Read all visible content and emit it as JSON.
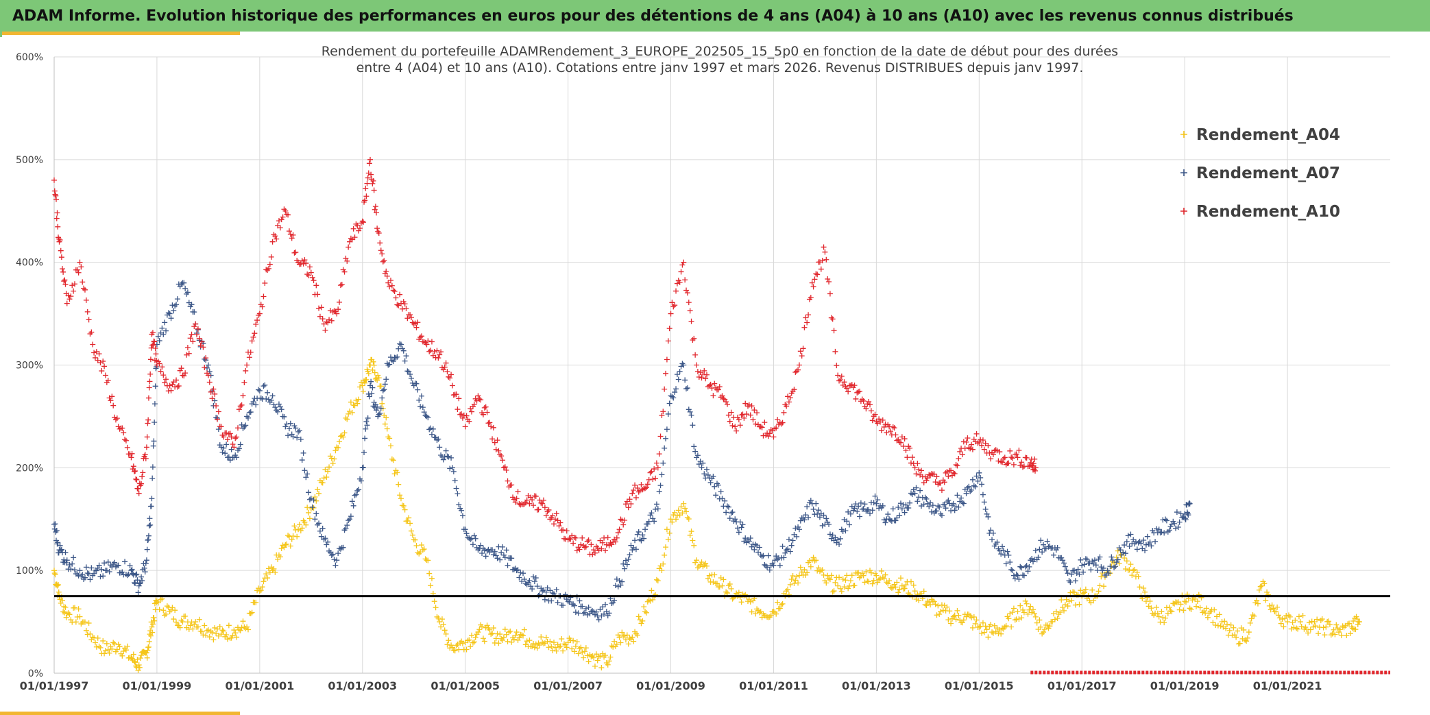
{
  "banner": {
    "title": "ADAM Informe. Evolution historique des performances en euros pour des détentions de 4 ans (A04) à 10 ans (A10) avec les revenus connus distribués"
  },
  "colors": {
    "banner": "#7dc777",
    "accent": "#f2b632",
    "a04": "#f5c518",
    "a07": "#3b5687",
    "a10": "#e1262c",
    "reference": "#000000",
    "grid": "#d9d9d9"
  },
  "chart_data": {
    "type": "scatter",
    "title_lines": [
      "Rendement du portefeuille ADAMRendement_3_EUROPE_202505_15_5p0  en fonction de la date de début pour des durées",
      "entre 4 (A04) et 10 ans (A10). Cotations entre janv 1997 et mars 2026. Revenus DISTRIBUES depuis janv 1997."
    ],
    "xlabel": "",
    "ylabel": "",
    "xlim": [
      1997.0,
      2023.0
    ],
    "ylim": [
      0,
      600
    ],
    "y_ticks": [
      0,
      100,
      200,
      300,
      400,
      500,
      600
    ],
    "y_tick_labels": [
      "0%",
      "100%",
      "200%",
      "300%",
      "400%",
      "500%",
      "600%"
    ],
    "x_ticks": [
      1997,
      1999,
      2001,
      2003,
      2005,
      2007,
      2009,
      2011,
      2013,
      2015,
      2017,
      2019,
      2021
    ],
    "x_tick_labels": [
      "01/01/1997",
      "01/01/1999",
      "01/01/2001",
      "01/01/2003",
      "01/01/2005",
      "01/01/2007",
      "01/01/2009",
      "01/01/2011",
      "01/01/2013",
      "01/01/2015",
      "01/01/2017",
      "01/01/2019",
      "01/01/2021"
    ],
    "grid": true,
    "legend_position": "top-right",
    "reference_line": {
      "y": 75
    },
    "series": [
      {
        "name": "Rendement_A04",
        "color": "#f5c518",
        "x": [
          1997.0,
          1997.1,
          1997.25,
          1997.5,
          1997.75,
          1998.0,
          1998.25,
          1998.5,
          1998.65,
          1998.8,
          1998.9,
          1999.0,
          1999.25,
          1999.5,
          1999.75,
          2000.0,
          2000.25,
          2000.5,
          2000.75,
          2001.0,
          2001.25,
          2001.5,
          2001.75,
          2002.0,
          2002.25,
          2002.5,
          2002.75,
          2003.0,
          2003.15,
          2003.3,
          2003.5,
          2003.75,
          2004.0,
          2004.25,
          2004.5,
          2004.75,
          2005.0,
          2005.25,
          2005.5,
          2005.75,
          2006.0,
          2006.25,
          2006.5,
          2006.75,
          2007.0,
          2007.25,
          2007.5,
          2007.75,
          2008.0,
          2008.25,
          2008.5,
          2008.75,
          2009.0,
          2009.25,
          2009.5,
          2009.75,
          2010.0,
          2010.25,
          2010.5,
          2010.75,
          2011.0,
          2011.25,
          2011.5,
          2011.75,
          2012.0,
          2012.25,
          2012.5,
          2012.75,
          2013.0,
          2013.25,
          2013.5,
          2013.75,
          2014.0,
          2014.25,
          2014.5,
          2014.75,
          2015.0,
          2015.25,
          2015.5,
          2015.75,
          2016.0,
          2016.25,
          2016.5,
          2016.75,
          2017.0,
          2017.25,
          2017.5,
          2017.75,
          2018.0,
          2018.25,
          2018.5,
          2018.75,
          2019.0,
          2019.25,
          2019.5,
          2019.75,
          2020.0,
          2020.25,
          2020.5,
          2020.75,
          2021.0,
          2021.25,
          2021.5,
          2021.75,
          2022.0,
          2022.25,
          2022.4
        ],
        "y": [
          100,
          75,
          58,
          55,
          35,
          22,
          28,
          15,
          8,
          20,
          45,
          70,
          60,
          50,
          50,
          42,
          38,
          42,
          45,
          80,
          100,
          125,
          140,
          160,
          190,
          220,
          255,
          280,
          300,
          290,
          230,
          170,
          130,
          110,
          50,
          25,
          30,
          40,
          38,
          35,
          40,
          32,
          30,
          25,
          30,
          25,
          15,
          10,
          35,
          35,
          60,
          90,
          150,
          165,
          110,
          95,
          85,
          75,
          70,
          60,
          60,
          80,
          95,
          110,
          90,
          85,
          90,
          95,
          95,
          90,
          85,
          80,
          70,
          60,
          55,
          55,
          45,
          40,
          45,
          60,
          65,
          40,
          60,
          70,
          75,
          75,
          100,
          115,
          100,
          70,
          55,
          60,
          70,
          70,
          60,
          45,
          35,
          40,
          85,
          60,
          50,
          50,
          45,
          45,
          40,
          45,
          50
        ]
      },
      {
        "name": "Rendement_A07",
        "color": "#3b5687",
        "x": [
          1997.0,
          1997.1,
          1997.25,
          1997.5,
          1997.75,
          1998.0,
          1998.25,
          1998.5,
          1998.65,
          1998.8,
          1998.9,
          1999.0,
          1999.25,
          1999.5,
          1999.75,
          2000.0,
          2000.25,
          2000.5,
          2000.75,
          2001.0,
          2001.25,
          2001.5,
          2001.75,
          2002.0,
          2002.25,
          2002.5,
          2002.75,
          2003.0,
          2003.15,
          2003.3,
          2003.5,
          2003.75,
          2004.0,
          2004.25,
          2004.5,
          2004.75,
          2005.0,
          2005.25,
          2005.5,
          2005.75,
          2006.0,
          2006.25,
          2006.5,
          2006.75,
          2007.0,
          2007.25,
          2007.5,
          2007.75,
          2008.0,
          2008.25,
          2008.5,
          2008.75,
          2009.0,
          2009.25,
          2009.5,
          2009.75,
          2010.0,
          2010.25,
          2010.5,
          2010.75,
          2011.0,
          2011.25,
          2011.5,
          2011.75,
          2012.0,
          2012.25,
          2012.5,
          2012.75,
          2013.0,
          2013.25,
          2013.5,
          2013.75,
          2014.0,
          2014.25,
          2014.5,
          2014.75,
          2015.0,
          2015.25,
          2015.5,
          2015.75,
          2016.0,
          2016.25,
          2016.5,
          2016.75,
          2017.0,
          2017.25,
          2017.5,
          2017.75,
          2018.0,
          2018.25,
          2018.5,
          2018.75,
          2019.0,
          2019.1
        ],
        "y": [
          145,
          120,
          110,
          100,
          95,
          100,
          105,
          100,
          85,
          110,
          170,
          320,
          350,
          380,
          340,
          300,
          220,
          210,
          250,
          275,
          270,
          240,
          235,
          170,
          130,
          110,
          150,
          200,
          280,
          250,
          300,
          320,
          280,
          250,
          220,
          200,
          140,
          120,
          120,
          115,
          100,
          90,
          80,
          75,
          70,
          65,
          60,
          60,
          90,
          120,
          140,
          160,
          270,
          300,
          210,
          190,
          170,
          150,
          130,
          115,
          105,
          120,
          140,
          165,
          145,
          130,
          155,
          160,
          165,
          150,
          160,
          175,
          165,
          155,
          165,
          175,
          195,
          130,
          115,
          95,
          110,
          125,
          120,
          90,
          105,
          110,
          100,
          120,
          130,
          125,
          140,
          145,
          155,
          165
        ]
      },
      {
        "name": "Rendement_A10",
        "color": "#e1262c",
        "x": [
          1997.0,
          1997.1,
          1997.25,
          1997.5,
          1997.75,
          1998.0,
          1998.25,
          1998.5,
          1998.65,
          1998.8,
          1998.9,
          1999.0,
          1999.25,
          1999.5,
          1999.75,
          2000.0,
          2000.25,
          2000.5,
          2000.75,
          2001.0,
          2001.25,
          2001.5,
          2001.75,
          2002.0,
          2002.25,
          2002.5,
          2002.75,
          2003.0,
          2003.15,
          2003.3,
          2003.5,
          2003.75,
          2004.0,
          2004.25,
          2004.5,
          2004.75,
          2005.0,
          2005.25,
          2005.5,
          2005.75,
          2006.0,
          2006.25,
          2006.5,
          2006.75,
          2007.0,
          2007.25,
          2007.5,
          2007.75,
          2008.0,
          2008.25,
          2008.5,
          2008.75,
          2009.0,
          2009.25,
          2009.5,
          2009.75,
          2010.0,
          2010.25,
          2010.5,
          2010.75,
          2011.0,
          2011.25,
          2011.5,
          2011.75,
          2012.0,
          2012.25,
          2012.5,
          2012.75,
          2013.0,
          2013.25,
          2013.5,
          2013.75,
          2014.0,
          2014.25,
          2014.5,
          2014.75,
          2015.0,
          2015.25,
          2015.5,
          2015.75,
          2016.0,
          2016.1
        ],
        "y": [
          480,
          420,
          360,
          400,
          320,
          290,
          240,
          210,
          175,
          220,
          330,
          300,
          280,
          290,
          340,
          290,
          240,
          220,
          300,
          350,
          420,
          450,
          400,
          390,
          340,
          350,
          420,
          440,
          500,
          430,
          380,
          360,
          340,
          320,
          310,
          280,
          240,
          270,
          240,
          200,
          170,
          165,
          165,
          150,
          130,
          125,
          120,
          125,
          140,
          175,
          180,
          200,
          350,
          400,
          300,
          280,
          270,
          240,
          260,
          240,
          230,
          260,
          300,
          380,
          410,
          290,
          280,
          265,
          245,
          240,
          230,
          200,
          190,
          185,
          195,
          225,
          225,
          215,
          210,
          210,
          205,
          200
        ]
      }
    ]
  }
}
